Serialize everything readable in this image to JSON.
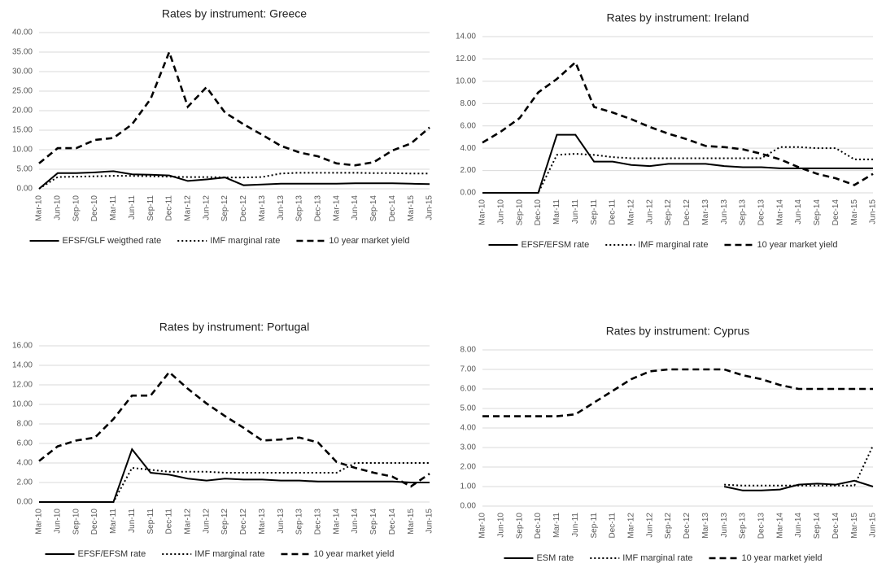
{
  "chart_data": [
    {
      "type": "line",
      "title": "Rates by instrument: Greece",
      "categories": [
        "Mar-10",
        "Jun-10",
        "Sep-10",
        "Dec-10",
        "Mar-11",
        "Jun-11",
        "Sep-11",
        "Dec-11",
        "Mar-12",
        "Jun-12",
        "Sep-12",
        "Dec-12",
        "Mar-13",
        "Jun-13",
        "Sep-13",
        "Dec-13",
        "Mar-14",
        "Jun-14",
        "Sep-14",
        "Dec-14",
        "Mar-15",
        "Jun-15"
      ],
      "ylim": [
        0,
        40
      ],
      "yticks": [
        {
          "value": 0,
          "label": "0.00"
        },
        {
          "value": 5,
          "label": "5.00"
        },
        {
          "value": 10,
          "label": "10.00"
        },
        {
          "value": 15,
          "label": "15.00"
        },
        {
          "value": 20,
          "label": "20.00"
        },
        {
          "value": 25,
          "label": "25.00"
        },
        {
          "value": 30,
          "label": "30.00"
        },
        {
          "value": 35,
          "label": "35.00"
        },
        {
          "value": 40,
          "label": "40.00"
        }
      ],
      "grid": true,
      "series": [
        {
          "name": "EFSF/GLF weigthed rate",
          "color": "#000000",
          "style": "solid",
          "values": [
            0,
            4,
            4,
            4.2,
            4.5,
            3.7,
            3.6,
            3.4,
            2.0,
            2.4,
            2.9,
            0.9,
            1.1,
            1.3,
            1.3,
            1.3,
            1.3,
            1.4,
            1.4,
            1.4,
            1.3,
            1.2
          ]
        },
        {
          "name": "IMF marginal rate",
          "color": "#000000",
          "style": "dotted",
          "values": [
            0,
            3,
            3.1,
            3.2,
            3.3,
            3.3,
            3.2,
            3.1,
            3.0,
            3.0,
            2.9,
            2.9,
            3.0,
            3.9,
            4.1,
            4.1,
            4.1,
            4.1,
            4.0,
            4.0,
            3.9,
            3.9
          ]
        },
        {
          "name": "10 year market yield",
          "color": "#000000",
          "style": "dashed",
          "values": [
            6.5,
            10.4,
            10.4,
            12.5,
            13,
            16.5,
            23,
            35,
            21,
            26,
            19.5,
            16.5,
            13.8,
            11,
            9.3,
            8.3,
            6.5,
            6,
            6.8,
            9.8,
            11.6,
            15.7
          ]
        }
      ]
    },
    {
      "type": "line",
      "title": "Rates by instrument: Ireland",
      "categories": [
        "Mar-10",
        "Jun-10",
        "Sep-10",
        "Dec-10",
        "Mar-11",
        "Jun-11",
        "Sep-11",
        "Dec-11",
        "Mar-12",
        "Jun-12",
        "Sep-12",
        "Dec-12",
        "Mar-13",
        "Jun-13",
        "Sep-13",
        "Dec-13",
        "Mar-14",
        "Jun-14",
        "Sep-14",
        "Dec-14",
        "Mar-15",
        "Jun-15"
      ],
      "ylim": [
        0,
        14
      ],
      "yticks": [
        {
          "value": 0,
          "label": "0.00"
        },
        {
          "value": 2,
          "label": "2.00"
        },
        {
          "value": 4,
          "label": "4.00"
        },
        {
          "value": 6,
          "label": "6.00"
        },
        {
          "value": 8,
          "label": "8.00"
        },
        {
          "value": 10,
          "label": "10.00"
        },
        {
          "value": 12,
          "label": "12.00"
        },
        {
          "value": 14,
          "label": "14.00"
        }
      ],
      "grid": true,
      "series": [
        {
          "name": "EFSF/EFSM rate",
          "color": "#000000",
          "style": "solid",
          "values": [
            0,
            0,
            0,
            0,
            5.2,
            5.2,
            2.8,
            2.8,
            2.5,
            2.4,
            2.6,
            2.6,
            2.6,
            2.4,
            2.3,
            2.3,
            2.2,
            2.2,
            2.2,
            2.2,
            2.2,
            2.2
          ]
        },
        {
          "name": "IMF marginal rate",
          "color": "#000000",
          "style": "dotted",
          "values": [
            0,
            0,
            0,
            0,
            3.4,
            3.5,
            3.4,
            3.2,
            3.1,
            3.1,
            3.1,
            3.1,
            3.1,
            3.1,
            3.1,
            3.1,
            4.1,
            4.1,
            4.0,
            4.0,
            3.0,
            3.0
          ]
        },
        {
          "name": "10 year market yield",
          "color": "#000000",
          "style": "dashed",
          "values": [
            4.5,
            5.5,
            6.7,
            9,
            10.2,
            11.7,
            7.7,
            7.2,
            6.6,
            5.9,
            5.3,
            4.8,
            4.2,
            4.1,
            3.9,
            3.5,
            3.0,
            2.3,
            1.7,
            1.3,
            0.7,
            1.7
          ]
        }
      ]
    },
    {
      "type": "line",
      "title": "Rates by instrument: Portugal",
      "categories": [
        "Mar-10",
        "Jun-10",
        "Sep-10",
        "Dec-10",
        "Mar-11",
        "Jun-11",
        "Sep-11",
        "Dec-11",
        "Mar-12",
        "Jun-12",
        "Sep-12",
        "Dec-12",
        "Mar-13",
        "Jun-13",
        "Sep-13",
        "Dec-13",
        "Mar-14",
        "Jun-14",
        "Sep-14",
        "Dec-14",
        "Mar-15",
        "Jun-15"
      ],
      "ylim": [
        0,
        16
      ],
      "yticks": [
        {
          "value": 0,
          "label": "0.00"
        },
        {
          "value": 2,
          "label": "2.00"
        },
        {
          "value": 4,
          "label": "4.00"
        },
        {
          "value": 6,
          "label": "6.00"
        },
        {
          "value": 8,
          "label": "8.00"
        },
        {
          "value": 10,
          "label": "10.00"
        },
        {
          "value": 12,
          "label": "12.00"
        },
        {
          "value": 14,
          "label": "14.00"
        },
        {
          "value": 16,
          "label": "16.00"
        }
      ],
      "grid": true,
      "series": [
        {
          "name": "EFSF/EFSM rate",
          "color": "#000000",
          "style": "solid",
          "values": [
            0,
            0,
            0,
            0,
            0,
            5.4,
            3.0,
            2.8,
            2.4,
            2.2,
            2.4,
            2.3,
            2.3,
            2.2,
            2.2,
            2.1,
            2.1,
            2.1,
            2.1,
            2.1,
            2.0,
            2.0
          ]
        },
        {
          "name": "IMF marginal rate",
          "color": "#000000",
          "style": "dotted",
          "values": [
            0,
            0,
            0,
            0,
            0,
            3.5,
            3.3,
            3.1,
            3.1,
            3.1,
            3.0,
            3.0,
            3.0,
            3.0,
            3.0,
            3.0,
            3.0,
            4.0,
            4.0,
            4.0,
            4.0,
            4.0
          ]
        },
        {
          "name": "10 year market yield",
          "color": "#000000",
          "style": "dashed",
          "values": [
            4.2,
            5.7,
            6.3,
            6.6,
            8.5,
            10.9,
            10.9,
            13.3,
            11.6,
            10.1,
            8.8,
            7.6,
            6.3,
            6.4,
            6.6,
            6.1,
            4.1,
            3.5,
            3.0,
            2.6,
            1.6,
            2.9
          ]
        }
      ]
    },
    {
      "type": "line",
      "title": "Rates by instrument: Cyprus",
      "categories": [
        "Mar-10",
        "Jun-10",
        "Sep-10",
        "Dec-10",
        "Mar-11",
        "Jun-11",
        "Sep-11",
        "Dec-11",
        "Mar-12",
        "Jun-12",
        "Sep-12",
        "Dec-12",
        "Mar-13",
        "Jun-13",
        "Sep-13",
        "Dec-13",
        "Mar-14",
        "Jun-14",
        "Sep-14",
        "Dec-14",
        "Mar-15",
        "Jun-15"
      ],
      "ylim": [
        0,
        8
      ],
      "yticks": [
        {
          "value": 0,
          "label": "0.00"
        },
        {
          "value": 1,
          "label": "1.00"
        },
        {
          "value": 2,
          "label": "2.00"
        },
        {
          "value": 3,
          "label": "3.00"
        },
        {
          "value": 4,
          "label": "4.00"
        },
        {
          "value": 5,
          "label": "5.00"
        },
        {
          "value": 6,
          "label": "6.00"
        },
        {
          "value": 7,
          "label": "7.00"
        },
        {
          "value": 8,
          "label": "8.00"
        }
      ],
      "grid": true,
      "series": [
        {
          "name": "ESM rate",
          "color": "#000000",
          "style": "solid",
          "values": [
            null,
            null,
            null,
            null,
            null,
            null,
            null,
            null,
            null,
            null,
            null,
            null,
            null,
            1.0,
            0.8,
            0.8,
            0.85,
            1.1,
            1.15,
            1.1,
            1.3,
            1.0
          ]
        },
        {
          "name": "IMF marginal rate",
          "color": "#000000",
          "style": "dotted",
          "values": [
            null,
            null,
            null,
            null,
            null,
            null,
            null,
            null,
            null,
            null,
            null,
            null,
            null,
            1.1,
            1.05,
            1.05,
            1.05,
            1.05,
            1.05,
            1.05,
            1.05,
            3.1
          ]
        },
        {
          "name": "10 year market yield",
          "color": "#000000",
          "style": "dashed",
          "values": [
            4.6,
            4.6,
            4.6,
            4.6,
            4.6,
            4.7,
            5.3,
            5.9,
            6.5,
            6.9,
            7.0,
            7.0,
            7.0,
            7.0,
            6.7,
            6.5,
            6.2,
            6.0,
            6.0,
            6.0,
            6.0,
            6.0
          ]
        }
      ]
    }
  ]
}
